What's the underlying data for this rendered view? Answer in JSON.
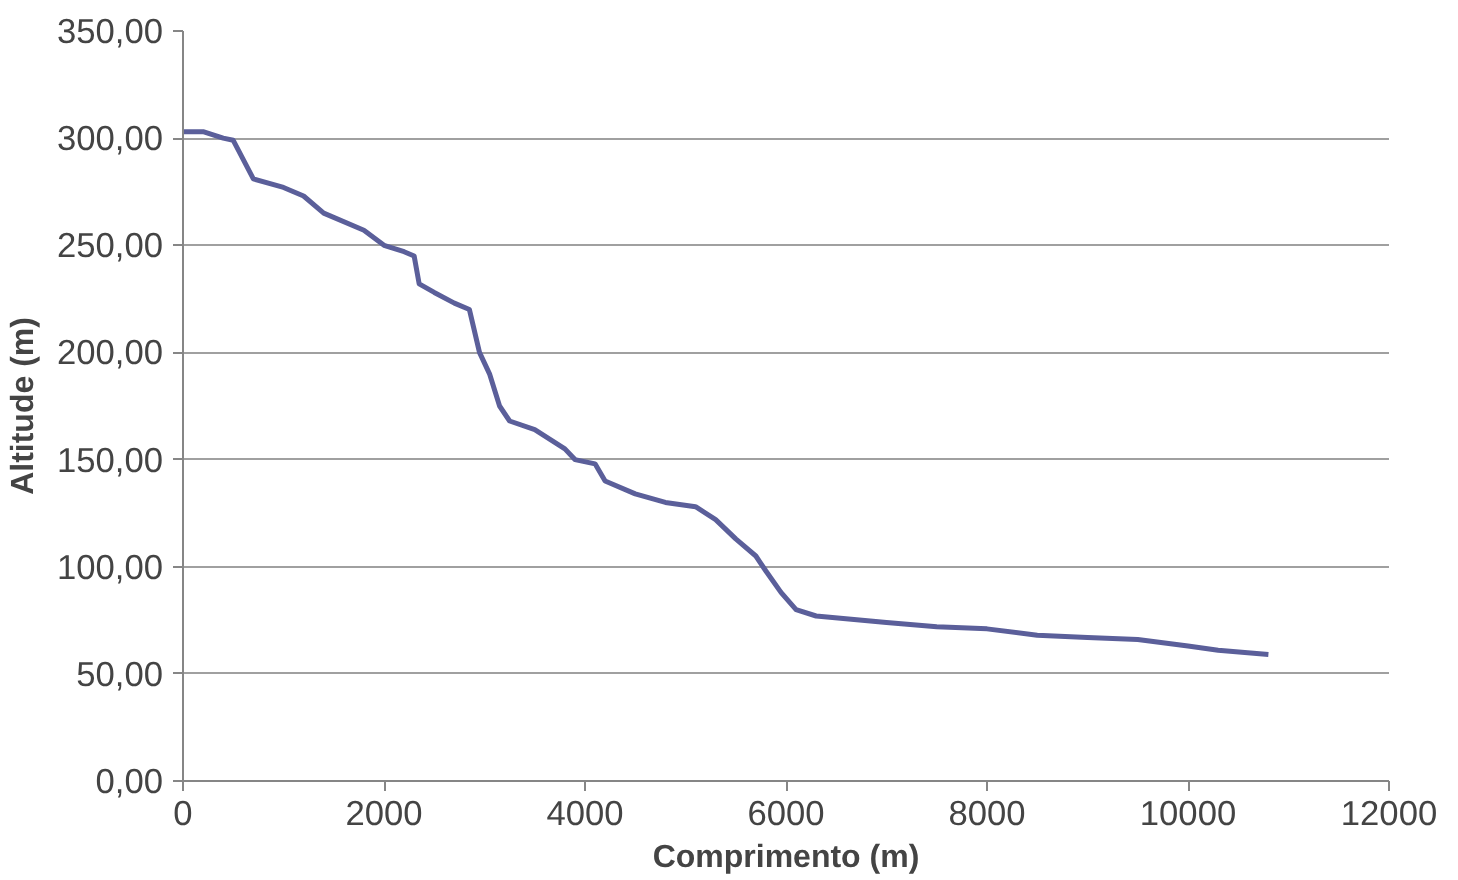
{
  "chart_data": {
    "type": "line",
    "xlabel": "Comprimento (m)",
    "ylabel": "Altitude (m)",
    "xlim": [
      0,
      12000
    ],
    "xticks": [
      0,
      2000,
      4000,
      6000,
      8000,
      10000,
      12000
    ],
    "ylim": [
      0,
      350
    ],
    "yticks": [
      {
        "value": 0,
        "label": "0,00"
      },
      {
        "value": 50,
        "label": "50,00"
      },
      {
        "value": 100,
        "label": "100,00"
      },
      {
        "value": 150,
        "label": "150,00"
      },
      {
        "value": 200,
        "label": "200,00"
      },
      {
        "value": 250,
        "label": "250,00"
      },
      {
        "value": 300,
        "label": "300,00"
      },
      {
        "value": 350,
        "label": "350,00"
      }
    ],
    "grid": "y",
    "series": [
      {
        "color": "#5b5f9a",
        "x": [
          0,
          200,
          400,
          500,
          600,
          700,
          1000,
          1200,
          1400,
          1800,
          2000,
          2200,
          2300,
          2350,
          2500,
          2700,
          2850,
          2950,
          3050,
          3150,
          3250,
          3500,
          3800,
          3900,
          4100,
          4200,
          4500,
          4800,
          5100,
          5300,
          5500,
          5700,
          5800,
          5950,
          6100,
          6300,
          7000,
          7500,
          8000,
          8500,
          9000,
          9500,
          10000,
          10300,
          10800
        ],
        "values": [
          303,
          303,
          300,
          299,
          290,
          281,
          277,
          273,
          265,
          257,
          250,
          247,
          245,
          232,
          228,
          223,
          220,
          200,
          190,
          175,
          168,
          164,
          155,
          150,
          148,
          140,
          134,
          130,
          128,
          122,
          113,
          105,
          98,
          88,
          80,
          77,
          74,
          72,
          71,
          68,
          67,
          66,
          63,
          61,
          59
        ]
      }
    ]
  }
}
